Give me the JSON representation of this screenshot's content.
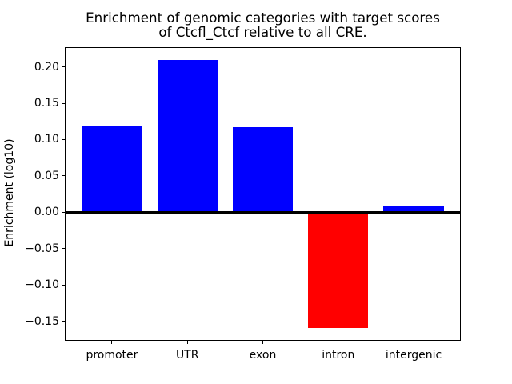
{
  "chart_data": {
    "type": "bar",
    "title": "Enrichment of genomic categories with target scores\nof Ctcfl_Ctcf relative to all CRE.",
    "xlabel": "",
    "ylabel": "Enrichment (log10)",
    "categories": [
      "promoter",
      "UTR",
      "exon",
      "intron",
      "intergenic"
    ],
    "values": [
      0.119,
      0.209,
      0.117,
      -0.159,
      0.009
    ],
    "bar_colors": [
      "#0000ff",
      "#0000ff",
      "#0000ff",
      "#ff0000",
      "#0000ff"
    ],
    "positive_color": "#0000ff",
    "negative_color": "#ff0000",
    "ylim": [
      -0.176,
      0.227
    ],
    "yticks": [
      {
        "value": 0.2,
        "label": "0.20"
      },
      {
        "value": 0.15,
        "label": "0.15"
      },
      {
        "value": 0.1,
        "label": "0.10"
      },
      {
        "value": 0.05,
        "label": "0.05"
      },
      {
        "value": 0.0,
        "label": "0.00"
      },
      {
        "value": -0.05,
        "label": "−0.05"
      },
      {
        "value": -0.1,
        "label": "−0.10"
      },
      {
        "value": -0.15,
        "label": "−0.15"
      }
    ],
    "zero_line": true,
    "grid": false,
    "legend": null,
    "background_color": "#ffffff",
    "text_color": "#000000"
  }
}
